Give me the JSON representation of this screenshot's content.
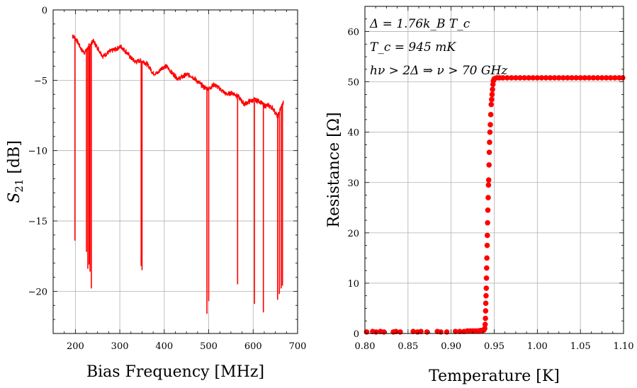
{
  "chart_data": [
    {
      "type": "line",
      "xlabel": "Bias Frequency [MHz]",
      "ylabel": "S21 [dB]",
      "ylabel_main": "S",
      "ylabel_sub": "21",
      "ylabel_unit": " [dB]",
      "xlim": [
        150,
        700
      ],
      "ylim": [
        -23,
        0
      ],
      "xticks": [
        200,
        300,
        400,
        500,
        600,
        700
      ],
      "yticks": [
        0,
        -5,
        -10,
        -15,
        -20
      ],
      "ytick_labels": [
        "0",
        "−5",
        "−10",
        "−15",
        "−20"
      ],
      "grid": true,
      "series": [
        {
          "color": "#ff0000",
          "baseline": [
            [
              193,
              -1.8
            ],
            [
              200,
              -2.0
            ],
            [
              207,
              -2.4
            ],
            [
              215,
              -2.9
            ],
            [
              222,
              -3.0
            ],
            [
              230,
              -2.6
            ],
            [
              240,
              -2.2
            ],
            [
              250,
              -2.7
            ],
            [
              262,
              -3.3
            ],
            [
              275,
              -3.0
            ],
            [
              290,
              -2.8
            ],
            [
              303,
              -2.6
            ],
            [
              315,
              -3.0
            ],
            [
              325,
              -3.4
            ],
            [
              335,
              -3.7
            ],
            [
              345,
              -3.6
            ],
            [
              355,
              -3.7
            ],
            [
              365,
              -4.0
            ],
            [
              375,
              -4.5
            ],
            [
              385,
              -4.5
            ],
            [
              395,
              -4.1
            ],
            [
              405,
              -4.0
            ],
            [
              418,
              -4.5
            ],
            [
              432,
              -4.9
            ],
            [
              450,
              -4.6
            ],
            [
              462,
              -4.7
            ],
            [
              475,
              -5.1
            ],
            [
              490,
              -5.5
            ],
            [
              500,
              -5.6
            ],
            [
              512,
              -5.3
            ],
            [
              525,
              -5.6
            ],
            [
              540,
              -6.0
            ],
            [
              552,
              -5.9
            ],
            [
              565,
              -6.1
            ],
            [
              580,
              -6.7
            ],
            [
              592,
              -6.5
            ],
            [
              603,
              -6.4
            ],
            [
              615,
              -6.5
            ],
            [
              625,
              -6.8
            ],
            [
              635,
              -6.8
            ],
            [
              645,
              -7.0
            ],
            [
              655,
              -7.6
            ],
            [
              662,
              -7.0
            ],
            [
              668,
              -6.6
            ]
          ],
          "dips": [
            [
              199,
              -16.4
            ],
            [
              225,
              -17.2
            ],
            [
              228,
              -18.4
            ],
            [
              231,
              -18.1
            ],
            [
              233,
              -18.6
            ],
            [
              236,
              -19.8
            ],
            [
              348,
              -18.2
            ],
            [
              350,
              -18.5
            ],
            [
              496,
              -21.6
            ],
            [
              500,
              -20.7
            ],
            [
              565,
              -19.5
            ],
            [
              603,
              -20.9
            ],
            [
              623,
              -21.5
            ],
            [
              655,
              -20.6
            ],
            [
              659,
              -20.2
            ],
            [
              663,
              -19.8
            ],
            [
              666,
              -19.6
            ]
          ]
        }
      ]
    },
    {
      "type": "scatter",
      "xlabel": "Temperature [K]",
      "ylabel": "Resistance [Ω]",
      "xlim": [
        0.8,
        1.1
      ],
      "ylim": [
        0,
        65
      ],
      "xticks": [
        0.8,
        0.85,
        0.9,
        0.95,
        1.0,
        1.05,
        1.1
      ],
      "xtick_labels": [
        "0.80",
        "0.85",
        "0.90",
        "0.95",
        "1.00",
        "1.05",
        "1.10"
      ],
      "yticks": [
        0,
        10,
        20,
        30,
        40,
        50,
        60
      ],
      "grid": true,
      "annotations": [
        "Δ = 1.76k_B T_c",
        "T_c = 945 mK",
        "hν > 2Δ ⇒ ν > 70 GHz"
      ],
      "series": [
        {
          "color": "#ff0000",
          "points": [
            [
              0.802,
              0.3
            ],
            [
              0.809,
              0.4
            ],
            [
              0.813,
              0.3
            ],
            [
              0.818,
              0.4
            ],
            [
              0.822,
              0.3
            ],
            [
              0.833,
              0.3
            ],
            [
              0.836,
              0.4
            ],
            [
              0.841,
              0.3
            ],
            [
              0.856,
              0.4
            ],
            [
              0.861,
              0.3
            ],
            [
              0.865,
              0.4
            ],
            [
              0.872,
              0.3
            ],
            [
              0.884,
              0.4
            ],
            [
              0.888,
              0.3
            ],
            [
              0.895,
              0.3
            ],
            [
              0.905,
              0.4
            ],
            [
              0.91,
              0.4
            ],
            [
              0.915,
              0.4
            ],
            [
              0.919,
              0.5
            ],
            [
              0.922,
              0.5
            ],
            [
              0.925,
              0.5
            ],
            [
              0.928,
              0.5
            ],
            [
              0.931,
              0.5
            ],
            [
              0.934,
              0.6
            ],
            [
              0.936,
              0.6
            ],
            [
              0.938,
              0.7
            ],
            [
              0.939,
              1.0
            ],
            [
              0.9395,
              1.8
            ],
            [
              0.9398,
              3.0
            ],
            [
              0.94,
              4.5
            ],
            [
              0.9402,
              6.0
            ],
            [
              0.9405,
              7.5
            ],
            [
              0.9408,
              9.0
            ],
            [
              0.941,
              11.0
            ],
            [
              0.9412,
              13.0
            ],
            [
              0.9415,
              15.0
            ],
            [
              0.9418,
              17.5
            ],
            [
              0.942,
              19.5
            ],
            [
              0.9423,
              22.0
            ],
            [
              0.9426,
              24.5
            ],
            [
              0.943,
              27.0
            ],
            [
              0.9433,
              29.5
            ],
            [
              0.9436,
              30.5
            ],
            [
              0.944,
              33.5
            ],
            [
              0.9443,
              36.0
            ],
            [
              0.9446,
              38.0
            ],
            [
              0.945,
              40.0
            ],
            [
              0.9455,
              41.5
            ],
            [
              0.946,
              43.5
            ],
            [
              0.9465,
              45.5
            ],
            [
              0.947,
              46.5
            ],
            [
              0.9475,
              47.5
            ],
            [
              0.948,
              48.5
            ],
            [
              0.9485,
              49.5
            ],
            [
              0.949,
              50.2
            ],
            [
              0.95,
              50.6
            ],
            [
              0.953,
              50.8
            ],
            [
              0.956,
              50.8
            ],
            [
              0.96,
              50.8
            ],
            [
              0.965,
              50.8
            ],
            [
              0.97,
              50.8
            ],
            [
              0.975,
              50.8
            ],
            [
              0.98,
              50.8
            ],
            [
              0.985,
              50.8
            ],
            [
              0.99,
              50.8
            ],
            [
              0.995,
              50.8
            ],
            [
              1.0,
              50.8
            ],
            [
              1.005,
              50.8
            ],
            [
              1.01,
              50.8
            ],
            [
              1.015,
              50.8
            ],
            [
              1.02,
              50.8
            ],
            [
              1.025,
              50.8
            ],
            [
              1.03,
              50.8
            ],
            [
              1.035,
              50.8
            ],
            [
              1.04,
              50.8
            ],
            [
              1.045,
              50.8
            ],
            [
              1.05,
              50.8
            ],
            [
              1.055,
              50.8
            ],
            [
              1.06,
              50.8
            ],
            [
              1.065,
              50.8
            ],
            [
              1.07,
              50.8
            ],
            [
              1.075,
              50.8
            ],
            [
              1.08,
              50.8
            ],
            [
              1.085,
              50.8
            ],
            [
              1.09,
              50.8
            ],
            [
              1.095,
              50.8
            ],
            [
              1.099,
              50.8
            ]
          ]
        }
      ]
    }
  ]
}
